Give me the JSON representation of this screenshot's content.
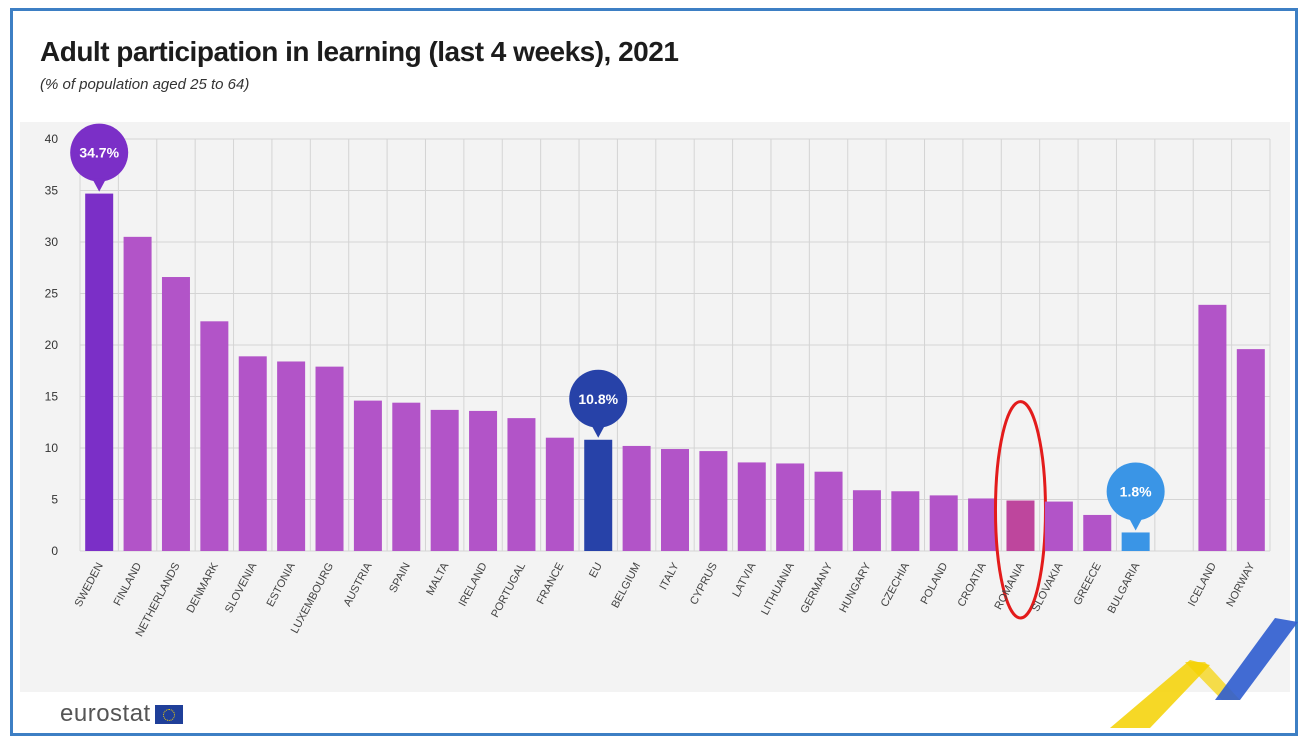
{
  "header": {
    "title": "Adult participation in learning (last 4 weeks), 2021",
    "subtitle": "(% of population aged 25 to 64)"
  },
  "brand": {
    "logo_text": "eurostat"
  },
  "colors": {
    "bar": "#b254c8",
    "highlight_top": "#7b2fc7",
    "eu": "#2742a8",
    "lowest": "#3a95e6",
    "romania_marker": "#e31b1b",
    "grid": "#d4d4d4",
    "deco_yellow": "#f5d100",
    "deco_blue": "#2e5ccf"
  },
  "chart_data": {
    "type": "bar",
    "title": "Adult participation in learning (last 4 weeks), 2021",
    "subtitle": "(% of population aged 25 to 64)",
    "xlabel": "",
    "ylabel": "",
    "ylim": [
      0,
      40
    ],
    "yticks": [
      0,
      5,
      10,
      15,
      20,
      25,
      30,
      35,
      40
    ],
    "grid": true,
    "categories": [
      "SWEDEN",
      "FINLAND",
      "NETHERLANDS",
      "DENMARK",
      "SLOVENIA",
      "ESTONIA",
      "LUXEMBOURG",
      "AUSTRIA",
      "SPAIN",
      "MALTA",
      "IRELAND",
      "PORTUGAL",
      "FRANCE",
      "EU",
      "BELGIUM",
      "ITALY",
      "CYPRUS",
      "LATVIA",
      "LITHUANIA",
      "GERMANY",
      "HUNGARY",
      "CZECHIA",
      "POLAND",
      "CROATIA",
      "ROMANIA",
      "SLOVAKIA",
      "GREECE",
      "BULGARIA",
      "",
      "ICELAND",
      "NORWAY"
    ],
    "values": [
      34.7,
      30.5,
      26.6,
      22.3,
      18.9,
      18.4,
      17.9,
      14.6,
      14.4,
      13.7,
      13.6,
      12.9,
      11.0,
      10.8,
      10.2,
      9.9,
      9.7,
      8.6,
      8.5,
      7.7,
      5.9,
      5.8,
      5.4,
      5.1,
      4.9,
      4.8,
      3.5,
      1.8,
      null,
      23.9,
      19.6
    ],
    "callouts": [
      {
        "category": "SWEDEN",
        "label": "34.7%",
        "color": "#7b2fc7"
      },
      {
        "category": "EU",
        "label": "10.8%",
        "color": "#2742a8"
      },
      {
        "category": "BULGARIA",
        "label": "1.8%",
        "color": "#3a95e6"
      }
    ],
    "highlighted_category": "ROMANIA"
  }
}
